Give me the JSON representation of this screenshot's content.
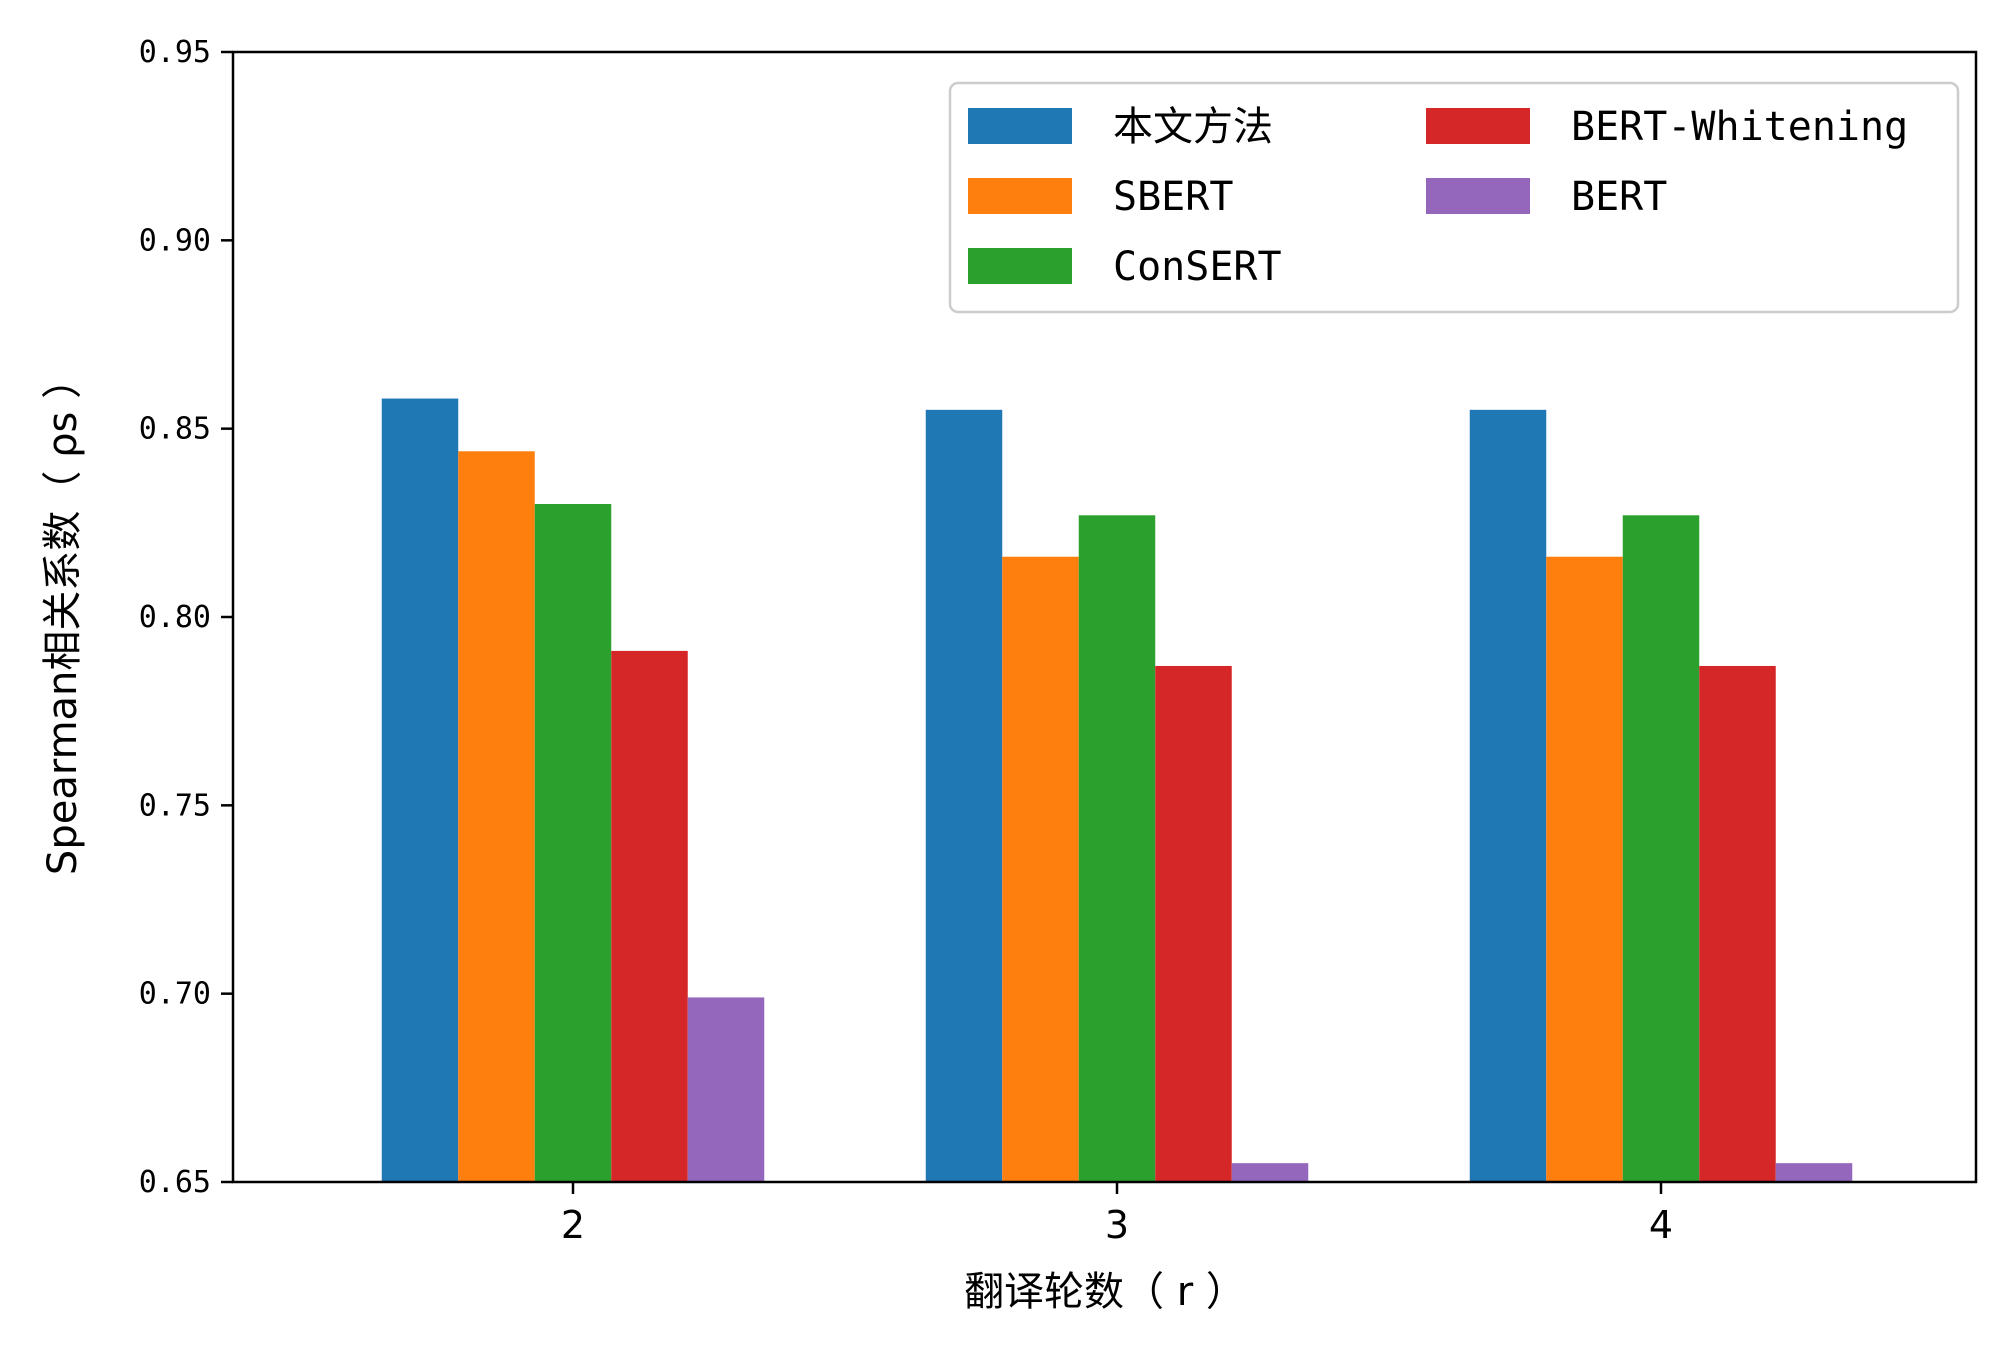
{
  "chart_data": {
    "type": "bar",
    "title": "",
    "xlabel": "翻译轮数（ r ）",
    "ylabel": "Spearman相关系数（ ρs ）",
    "ylim": [
      0.65,
      0.95
    ],
    "yticks": [
      "0.65",
      "0.70",
      "0.75",
      "0.80",
      "0.85",
      "0.90",
      "0.95"
    ],
    "categories": [
      "2",
      "3",
      "4"
    ],
    "legend_position": "top-right",
    "series": [
      {
        "name": "本文方法",
        "color": "#1f77b4",
        "values": [
          0.858,
          0.855,
          0.855
        ]
      },
      {
        "name": "SBERT",
        "color": "#ff7f0e",
        "values": [
          0.844,
          0.816,
          0.816
        ]
      },
      {
        "name": "ConSERT",
        "color": "#2ca02c",
        "values": [
          0.83,
          0.827,
          0.827
        ]
      },
      {
        "name": "BERT-Whitening",
        "color": "#d62728",
        "values": [
          0.791,
          0.787,
          0.787
        ]
      },
      {
        "name": "BERT",
        "color": "#9467bd",
        "values": [
          0.699,
          0.655,
          0.655
        ]
      }
    ]
  }
}
